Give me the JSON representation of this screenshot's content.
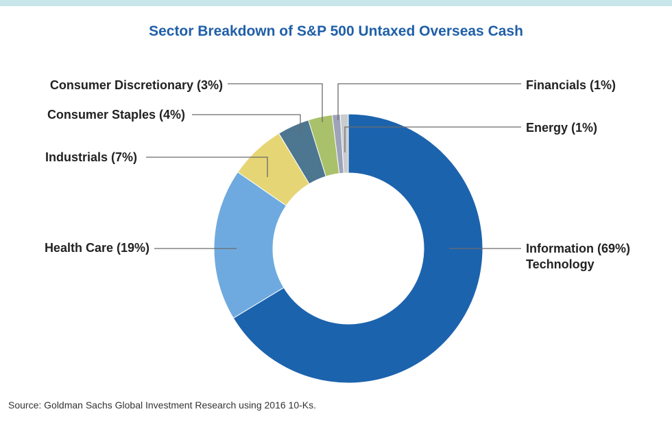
{
  "chart_data": {
    "type": "pie",
    "title": "Sector Breakdown of S&P 500 Untaxed Overseas Cash",
    "slices": [
      {
        "label": "Information Technology",
        "value": 69,
        "display": [
          "Information (69%)",
          "Technology"
        ],
        "color": "#1c63ad"
      },
      {
        "label": "Health Care",
        "value": 19,
        "display": [
          "Health Care (19%)"
        ],
        "color": "#6eaadf"
      },
      {
        "label": "Industrials",
        "value": 7,
        "display": [
          "Industrials (7%)"
        ],
        "color": "#e6d574"
      },
      {
        "label": "Consumer Staples",
        "value": 4,
        "display": [
          "Consumer Staples (4%)"
        ],
        "color": "#4d7690"
      },
      {
        "label": "Consumer Discretionary",
        "value": 3,
        "display": [
          "Consumer Discretionary (3%)"
        ],
        "color": "#a9c16a"
      },
      {
        "label": "Financials",
        "value": 1,
        "display": [
          "Financials (1%)"
        ],
        "color": "#9ea3ba"
      },
      {
        "label": "Energy",
        "value": 1,
        "display": [
          "Energy (1%)"
        ],
        "color": "#c9cccf"
      }
    ],
    "hole": "donut"
  },
  "source": "Source: Goldman Sachs Global Investment Research using 2016 10-Ks."
}
